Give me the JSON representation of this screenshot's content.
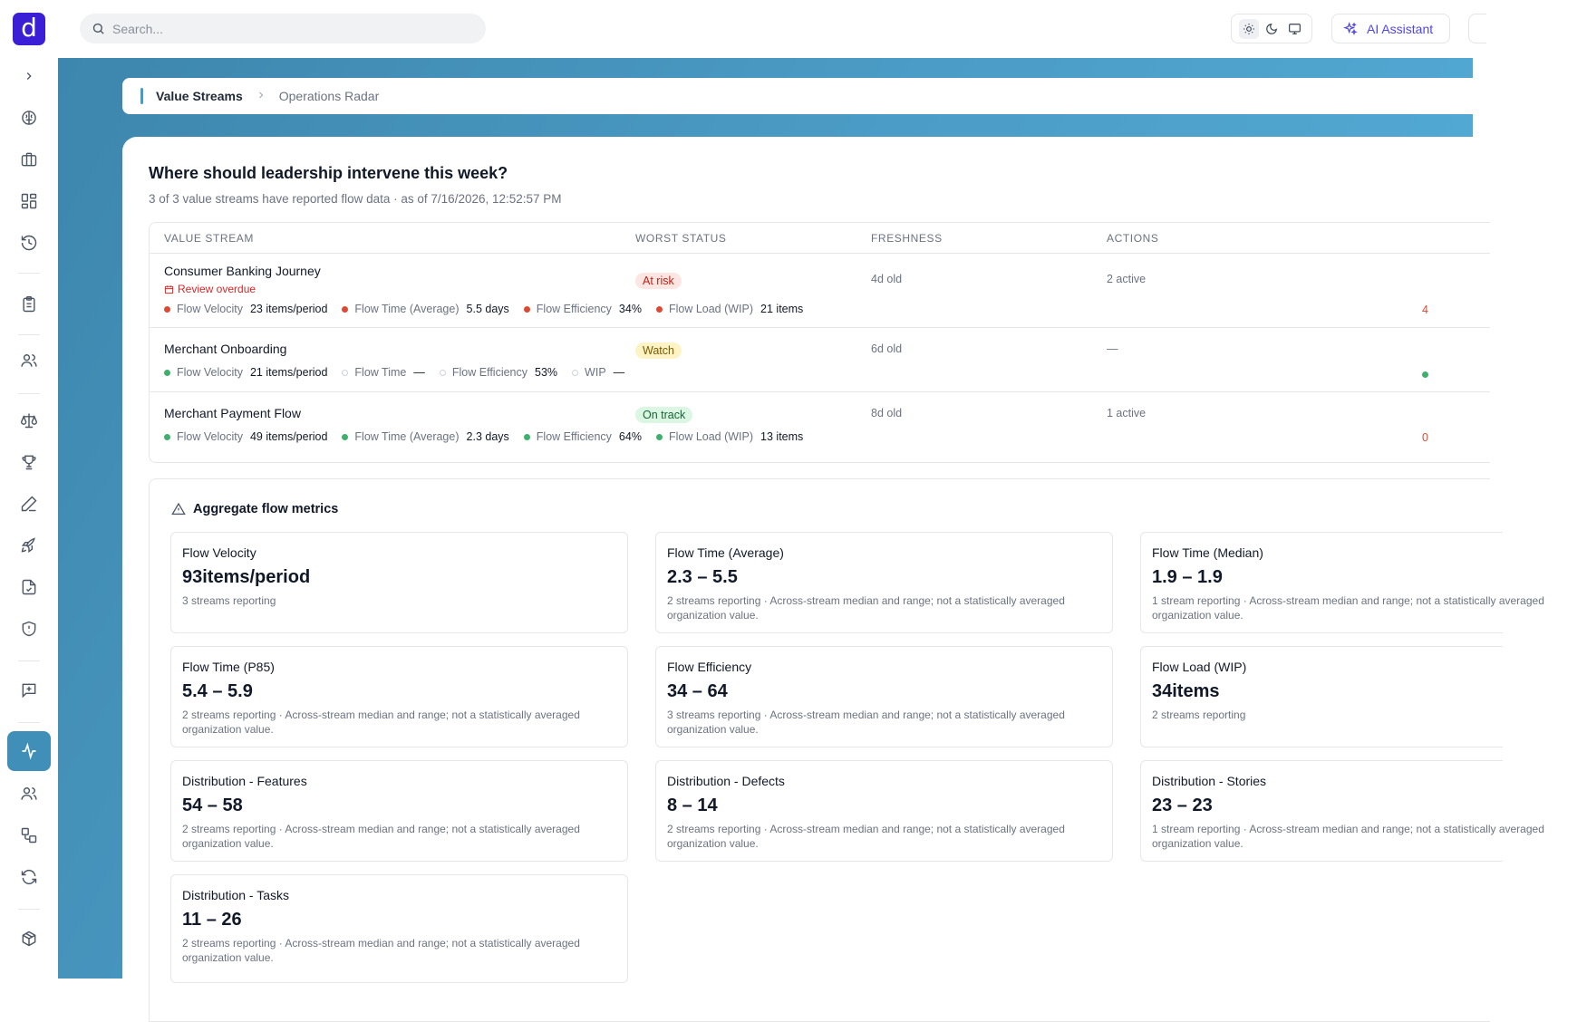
{
  "app": {
    "logo_letter": "d"
  },
  "search": {
    "placeholder": "Search..."
  },
  "header": {
    "ai_label": "AI Assistant"
  },
  "breadcrumb": {
    "root": "Value Streams",
    "current": "Operations Radar"
  },
  "page": {
    "title": "Where should leadership intervene this week?",
    "subtitle": "3 of 3 value streams have reported flow data · as of 7/16/2026, 12:52:57 PM"
  },
  "table": {
    "headers": [
      "Value Stream",
      "Worst Status",
      "Freshness",
      "Actions"
    ],
    "rows": [
      {
        "name": "Consumer Banking Journey",
        "flag": "Review overdue",
        "status": "At risk",
        "freshness": "4d old",
        "actions": "2 active",
        "edge_value": "4",
        "metrics": [
          {
            "label": "Flow Velocity",
            "value": "23 items/period",
            "state": "red"
          },
          {
            "label": "Flow Time (Average)",
            "value": "5.5 days",
            "state": "red"
          },
          {
            "label": "Flow Efficiency",
            "value": "34%",
            "state": "red"
          },
          {
            "label": "Flow Load (WIP)",
            "value": "21 items",
            "state": "red"
          }
        ]
      },
      {
        "name": "Merchant Onboarding",
        "status": "Watch",
        "freshness": "6d old",
        "actions": "—",
        "metrics": [
          {
            "label": "Flow Velocity",
            "value": "21 items/period",
            "state": "green"
          },
          {
            "label": "Flow Time",
            "value": "—",
            "state": "empty"
          },
          {
            "label": "Flow Efficiency",
            "value": "53%",
            "state": "empty"
          },
          {
            "label": "WIP",
            "value": "—",
            "state": "empty"
          }
        ]
      },
      {
        "name": "Merchant Payment Flow",
        "status": "On track",
        "freshness": "8d old",
        "actions": "1 active",
        "edge_value": "0",
        "metrics": [
          {
            "label": "Flow Velocity",
            "value": "49 items/period",
            "state": "green"
          },
          {
            "label": "Flow Time (Average)",
            "value": "2.3 days",
            "state": "green"
          },
          {
            "label": "Flow Efficiency",
            "value": "64%",
            "state": "green"
          },
          {
            "label": "Flow Load (WIP)",
            "value": "13 items",
            "state": "green"
          }
        ]
      }
    ]
  },
  "aggregate": {
    "title": "Aggregate flow metrics",
    "cards": [
      {
        "label": "Flow Velocity",
        "value": "93items/period",
        "note": "3 streams reporting"
      },
      {
        "label": "Flow Time (Average)",
        "value": "2.3 – 5.5",
        "note": "2 streams reporting · Across-stream median and range; not a statistically averaged organization value."
      },
      {
        "label": "Flow Time (Median)",
        "value": "1.9 – 1.9",
        "note": "1 stream reporting · Across-stream median and range; not a statistically averaged organization value."
      },
      {
        "label": "Flow Time (P85)",
        "value": "5.4 – 5.9",
        "note": "2 streams reporting · Across-stream median and range; not a statistically averaged organization value."
      },
      {
        "label": "Flow Efficiency",
        "value": "34 – 64",
        "note": "3 streams reporting · Across-stream median and range; not a statistically averaged organization value."
      },
      {
        "label": "Flow Load (WIP)",
        "value": "34items",
        "note": "2 streams reporting"
      },
      {
        "label": "Distribution - Features",
        "value": "54 – 58",
        "note": "2 streams reporting · Across-stream median and range; not a statistically averaged organization value."
      },
      {
        "label": "Distribution - Defects",
        "value": "8 – 14",
        "note": "2 streams reporting · Across-stream median and range; not a statistically averaged organization value."
      },
      {
        "label": "Distribution - Stories",
        "value": "23 – 23",
        "note": "1 stream reporting · Across-stream median and range; not a statistically averaged organization value."
      },
      {
        "label": "Distribution - Tasks",
        "value": "11 – 26",
        "note": "2 streams reporting · Across-stream median and range; not a statistically averaged organization value."
      }
    ]
  },
  "colors": {
    "accent": "#3f8fb8",
    "risk": "#dc4a34",
    "ok": "#3fb06b",
    "brand": "#3b1fd6"
  }
}
